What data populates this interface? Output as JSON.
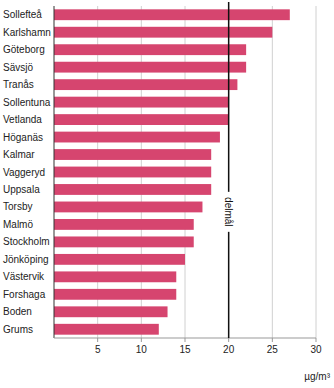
{
  "chart_data": {
    "type": "bar",
    "orientation": "horizontal",
    "categories": [
      "Sollefteå",
      "Karlshamn",
      "Göteborg",
      "Sävsjö",
      "Tranås",
      "Sollentuna",
      "Vetlanda",
      "Höganäs",
      "Kalmar",
      "Vaggeryd",
      "Uppsala",
      "Torsby",
      "Malmö",
      "Stockholm",
      "Jönköping",
      "Västervik",
      "Forshaga",
      "Boden",
      "Grums"
    ],
    "values": [
      27,
      25,
      22,
      22,
      21,
      20,
      20,
      19,
      18,
      18,
      18,
      17,
      16,
      16,
      15,
      14,
      14,
      13,
      12
    ],
    "color": "#d6456f",
    "xlabel": "µg/m³",
    "xlim": [
      0,
      30
    ],
    "xticks": [
      5,
      10,
      15,
      20,
      25,
      30
    ],
    "grid": true,
    "annotations": [
      {
        "text": "delmål",
        "x": 20
      }
    ]
  }
}
